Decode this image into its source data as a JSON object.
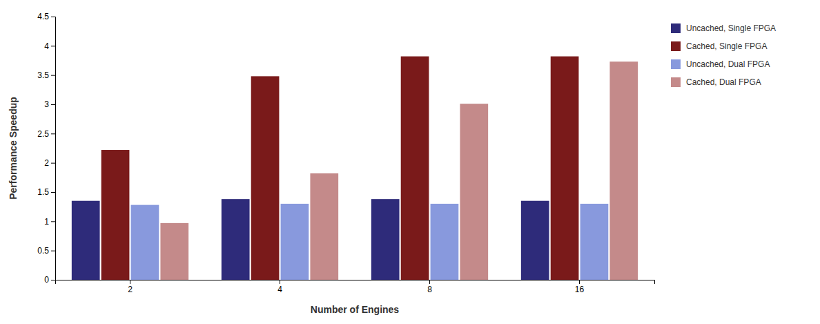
{
  "chart_data": {
    "type": "bar",
    "categories": [
      "2",
      "4",
      "8",
      "16"
    ],
    "series": [
      {
        "name": "Uncached, Single FPGA",
        "color": "#2E2B7A",
        "values": [
          1.35,
          1.38,
          1.38,
          1.35
        ]
      },
      {
        "name": "Cached, Single FPGA",
        "color": "#7A1A1A",
        "values": [
          2.22,
          3.48,
          3.82,
          3.82
        ]
      },
      {
        "name": "Uncached, Dual FPGA",
        "color": "#8899DD",
        "values": [
          1.28,
          1.3,
          1.3,
          1.3
        ]
      },
      {
        "name": "Cached, Dual FPGA",
        "color": "#C48A8A",
        "values": [
          0.97,
          1.82,
          3.01,
          3.73
        ]
      }
    ],
    "xlabel": "Number of Engines",
    "ylabel": "Performance Speedup",
    "ylim": [
      0,
      4.5
    ],
    "yticks": [
      0,
      0.5,
      1,
      1.5,
      2,
      2.5,
      3,
      3.5,
      4,
      4.5
    ],
    "grid": false,
    "legend": "right"
  }
}
